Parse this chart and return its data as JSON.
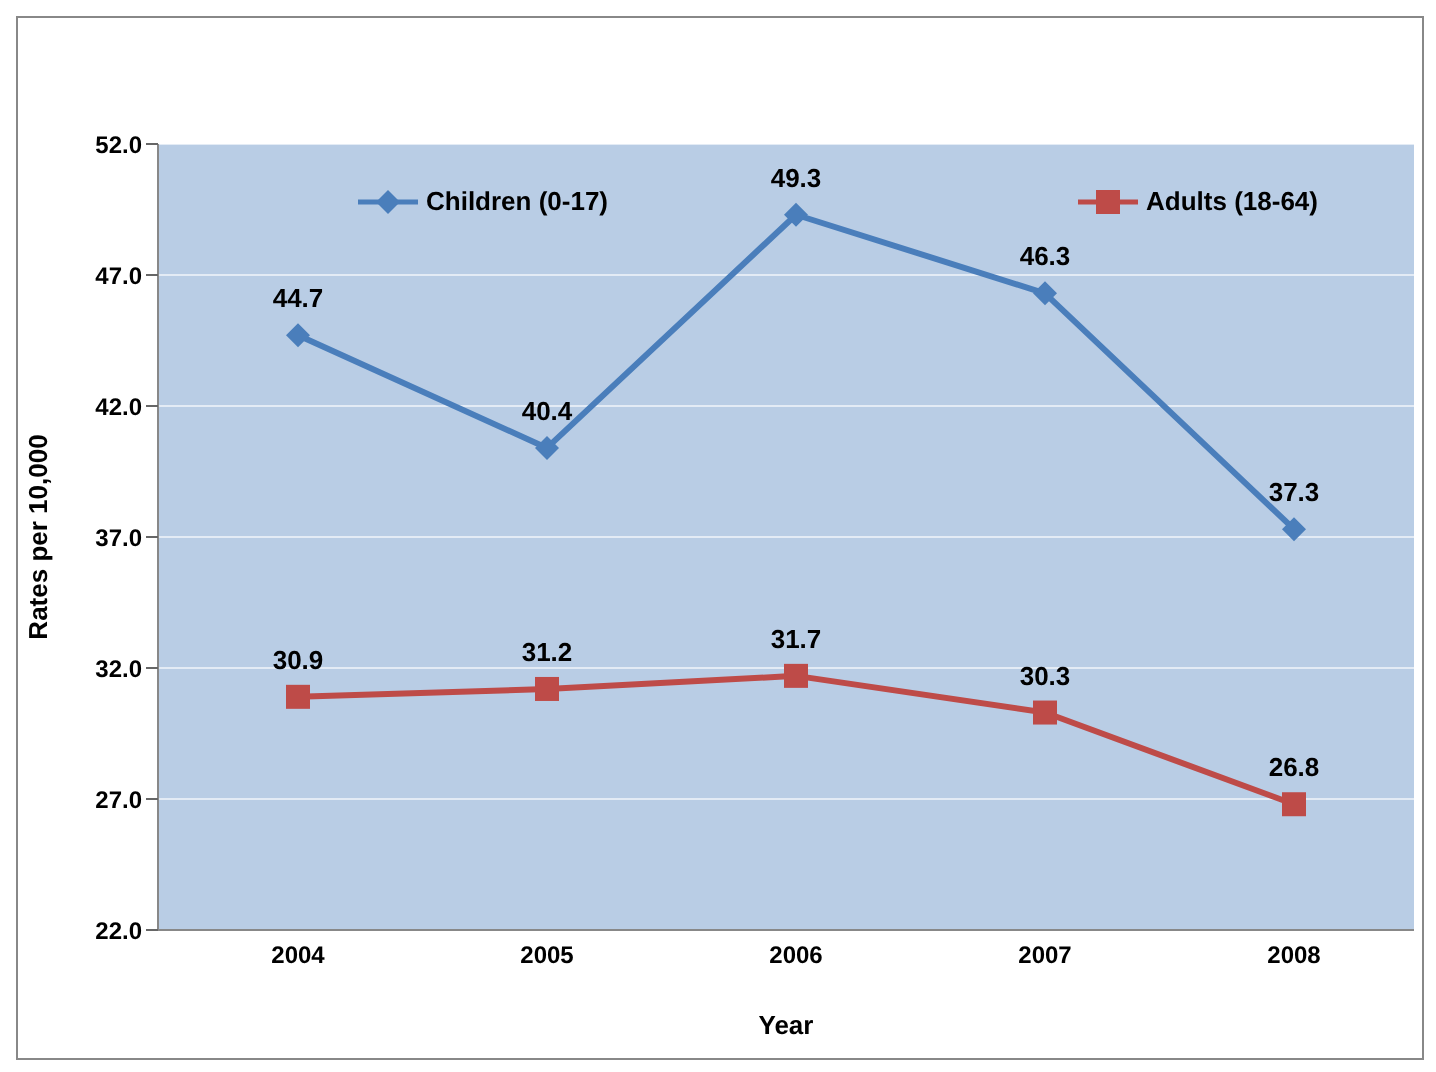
{
  "chart_data": {
    "type": "line",
    "xlabel": "Year",
    "ylabel": "Rates per 10,000",
    "categories": [
      "2004",
      "2005",
      "2006",
      "2007",
      "2008"
    ],
    "series": [
      {
        "name": "Children (0-17)",
        "color": "#4a7ebb",
        "values": [
          44.7,
          40.4,
          49.3,
          46.3,
          37.3
        ],
        "marker": "diamond"
      },
      {
        "name": "Adults (18-64)",
        "color": "#be4b48",
        "values": [
          30.9,
          31.2,
          31.7,
          30.3,
          26.8
        ],
        "marker": "square"
      }
    ],
    "ylim": [
      22,
      52
    ],
    "yticks": [
      {
        "value": 22,
        "label": "22.0"
      },
      {
        "value": 27,
        "label": "27.0"
      },
      {
        "value": 32,
        "label": "32.0"
      },
      {
        "value": 37,
        "label": "37.0"
      },
      {
        "value": 42,
        "label": "42.0"
      },
      {
        "value": 47,
        "label": "47.0"
      },
      {
        "value": 52,
        "label": "52.0"
      }
    ],
    "grid": "y",
    "legend": "top",
    "data_labels": true,
    "line_style": "solid"
  }
}
